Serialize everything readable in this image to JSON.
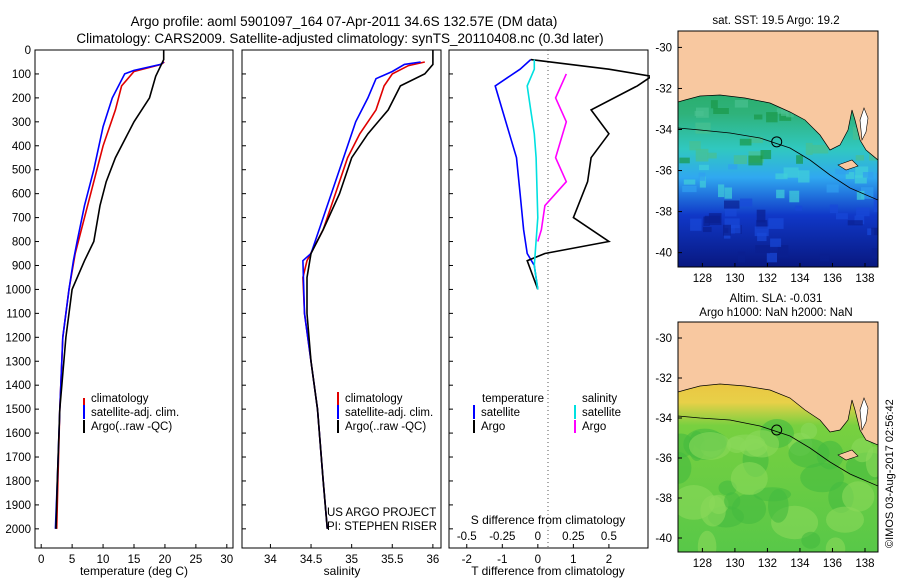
{
  "header": {
    "line1": "Argo profile: aoml 5901097_164 07-Apr-2011 34.6S 132.57E (DM data)",
    "line2": "Climatology: CARS2009. Satellite-adjusted climatology: synTS_20110408.nc (0.3d later)"
  },
  "colors": {
    "climatology": "#e00000",
    "satellite": "#0000ff",
    "argo": "#000000",
    "argo_s": "#ff00ff",
    "sat_s": "#00e0e0",
    "land": "#f8c8a0"
  },
  "chart_data": [
    {
      "type": "line",
      "id": "temperature",
      "xlabel": "temperature (deg C)",
      "ylabel": "",
      "xlim": [
        -1,
        31
      ],
      "ylim": [
        2080,
        0
      ],
      "xticks": [
        0,
        5,
        10,
        15,
        20,
        25,
        30
      ],
      "yticks": [
        0,
        100,
        200,
        300,
        400,
        500,
        600,
        700,
        800,
        900,
        1000,
        1100,
        1200,
        1300,
        1400,
        1500,
        1600,
        1700,
        1800,
        1900,
        2000
      ],
      "legend": [
        "climatology",
        "satellite-adj. clim.",
        "Argo(..raw -QC)"
      ],
      "legend_position": "bottom-center",
      "series": [
        {
          "name": "climatology",
          "color": "red",
          "points": [
            [
              19.9,
              50
            ],
            [
              19.4,
              60
            ],
            [
              15,
              90
            ],
            [
              13,
              150
            ],
            [
              12,
              250
            ],
            [
              10,
              400
            ],
            [
              9,
              500
            ],
            [
              7,
              700
            ],
            [
              5.5,
              850
            ],
            [
              4.5,
              1000
            ],
            [
              3.5,
              1200
            ],
            [
              3,
              1500
            ],
            [
              2.7,
              1800
            ],
            [
              2.5,
              2000
            ]
          ]
        },
        {
          "name": "satellite-adj. clim.",
          "color": "blue",
          "points": [
            [
              19.8,
              50
            ],
            [
              19.3,
              60
            ],
            [
              15,
              85
            ],
            [
              13.5,
              100
            ],
            [
              11.5,
              200
            ],
            [
              10,
              320
            ],
            [
              8.5,
              500
            ],
            [
              7,
              650
            ],
            [
              5.8,
              800
            ],
            [
              5.2,
              880
            ],
            [
              4.5,
              1000
            ],
            [
              3.5,
              1200
            ],
            [
              3,
              1500
            ],
            [
              2.6,
              1800
            ],
            [
              2.3,
              2000
            ]
          ]
        },
        {
          "name": "Argo(..raw -QC)",
          "color": "black",
          "points": [
            [
              19.8,
              0
            ],
            [
              19.8,
              40
            ],
            [
              18.5,
              110
            ],
            [
              17.5,
              200
            ],
            [
              15,
              300
            ],
            [
              12,
              450
            ],
            [
              10.5,
              550
            ],
            [
              9.5,
              650
            ],
            [
              8.5,
              800
            ],
            [
              7,
              880
            ],
            [
              5,
              1000
            ],
            [
              4,
              1200
            ],
            [
              3,
              1500
            ],
            [
              2.6,
              1800
            ],
            [
              2.4,
              2000
            ]
          ]
        }
      ],
      "annotations": []
    },
    {
      "type": "line",
      "id": "salinity",
      "xlabel": "salinity",
      "xlim": [
        33.65,
        36.1
      ],
      "ylim": [
        2080,
        0
      ],
      "xticks": [
        34,
        34.5,
        35,
        35.5,
        36
      ],
      "xticklabels": [
        "34",
        "34.5",
        "35",
        "35.5",
        "36"
      ],
      "legend": [
        "climatology",
        "satellite-adj. clim.",
        "Argo(..raw -QC)"
      ],
      "legend_position": "bottom-center",
      "annotations": [
        "US ARGO PROJECT",
        "PI: STEPHEN RISER"
      ],
      "series": [
        {
          "name": "climatology",
          "color": "red",
          "points": [
            [
              35.9,
              50
            ],
            [
              35.7,
              65
            ],
            [
              35.5,
              100
            ],
            [
              35.4,
              150
            ],
            [
              35.3,
              250
            ],
            [
              35.1,
              350
            ],
            [
              34.95,
              450
            ],
            [
              34.8,
              600
            ],
            [
              34.65,
              750
            ],
            [
              34.45,
              880
            ],
            [
              34.4,
              950
            ],
            [
              34.42,
              1100
            ],
            [
              34.5,
              1300
            ],
            [
              34.58,
              1500
            ],
            [
              34.65,
              1800
            ],
            [
              34.7,
              2000
            ]
          ]
        },
        {
          "name": "satellite-adj. clim.",
          "color": "blue",
          "points": [
            [
              35.85,
              50
            ],
            [
              35.65,
              60
            ],
            [
              35.5,
              90
            ],
            [
              35.3,
              120
            ],
            [
              35.2,
              200
            ],
            [
              35.05,
              300
            ],
            [
              34.95,
              400
            ],
            [
              34.8,
              550
            ],
            [
              34.65,
              700
            ],
            [
              34.5,
              850
            ],
            [
              34.4,
              880
            ],
            [
              34.42,
              1100
            ],
            [
              34.5,
              1300
            ],
            [
              34.58,
              1500
            ],
            [
              34.65,
              1800
            ],
            [
              34.7,
              2000
            ]
          ]
        },
        {
          "name": "Argo(..raw -QC)",
          "color": "black",
          "points": [
            [
              36.0,
              0
            ],
            [
              36.0,
              60
            ],
            [
              35.9,
              100
            ],
            [
              35.6,
              150
            ],
            [
              35.45,
              250
            ],
            [
              35.2,
              350
            ],
            [
              35.0,
              450
            ],
            [
              34.85,
              600
            ],
            [
              34.65,
              750
            ],
            [
              34.5,
              850
            ],
            [
              34.45,
              950
            ],
            [
              34.45,
              1100
            ],
            [
              34.5,
              1300
            ],
            [
              34.58,
              1500
            ],
            [
              34.65,
              1800
            ],
            [
              34.7,
              2000
            ]
          ]
        }
      ]
    },
    {
      "type": "line",
      "id": "difference",
      "xlabel": "T difference from climatology",
      "xlabel_top": "S difference from climatology",
      "xlim": [
        -2.5,
        3.1
      ],
      "ylim": [
        2080,
        0
      ],
      "xticks_t": [
        -2,
        -1,
        0,
        1,
        2
      ],
      "xticks_s": [
        -0.5,
        -0.25,
        0,
        0.25,
        0.5
      ],
      "xticklabels_s": [
        "-0.5",
        "-0.25",
        "0",
        "0.25",
        "0.5"
      ],
      "legend_title_left": "temperature",
      "legend_title_right": "salinity",
      "legend": [
        "satellite",
        "Argo",
        "satellite",
        "Argo"
      ],
      "legend_position": "bottom",
      "series": [
        {
          "name": "satellite",
          "kind": "temperature",
          "color": "blue",
          "points": [
            [
              -0.2,
              40
            ],
            [
              -0.5,
              80
            ],
            [
              -1.2,
              150
            ],
            [
              -1.0,
              250
            ],
            [
              -0.8,
              350
            ],
            [
              -0.6,
              450
            ],
            [
              -0.5,
              600
            ],
            [
              -0.4,
              750
            ],
            [
              -0.3,
              850
            ],
            [
              -0.1,
              900
            ],
            [
              0,
              1000
            ]
          ]
        },
        {
          "name": "Argo",
          "kind": "temperature",
          "color": "black",
          "points": [
            [
              -0.2,
              40
            ],
            [
              2.0,
              80
            ],
            [
              3.2,
              110
            ],
            [
              2.8,
              150
            ],
            [
              1.5,
              250
            ],
            [
              2.0,
              350
            ],
            [
              1.5,
              450
            ],
            [
              1.4,
              550
            ],
            [
              1.0,
              700
            ],
            [
              2.0,
              800
            ],
            [
              0.2,
              850
            ],
            [
              -0.3,
              880
            ],
            [
              0,
              1000
            ]
          ]
        },
        {
          "name": "satellite",
          "kind": "salinity",
          "color": "cyan",
          "points": [
            [
              -0.1,
              40
            ],
            [
              -0.1,
              80
            ],
            [
              -0.3,
              150
            ],
            [
              -0.2,
              250
            ],
            [
              -0.1,
              350
            ],
            [
              -0.05,
              450
            ],
            [
              0,
              700
            ],
            [
              -0.1,
              900
            ],
            [
              0,
              1000
            ]
          ]
        },
        {
          "name": "Argo",
          "kind": "salinity",
          "color": "magenta",
          "points": [
            [
              0.8,
              100
            ],
            [
              0.5,
              200
            ],
            [
              0.8,
              300
            ],
            [
              0.5,
              450
            ],
            [
              0.8,
              550
            ],
            [
              0.2,
              650
            ],
            [
              0.1,
              750
            ],
            [
              0,
              800
            ]
          ]
        }
      ]
    }
  ],
  "maps": {
    "lon_ticks": [
      128,
      130,
      132,
      134,
      136,
      138
    ],
    "lat_ticks": [
      -30,
      -32,
      -34,
      -36,
      -38,
      -40
    ],
    "lat_labels": [
      "-30",
      "-32",
      "-34",
      "-36",
      "-38",
      "-40"
    ],
    "sst": {
      "title": "sat. SST: 19.5  Argo: 19.2"
    },
    "sla": {
      "title1": "Altim. SLA: -0.031",
      "title2": "Argo h1000: NaN  h2000: NaN"
    },
    "float_lon": 132.57,
    "float_lat": -34.6
  },
  "watermark": "©IMOS 03-Aug-2017 02:56:42"
}
